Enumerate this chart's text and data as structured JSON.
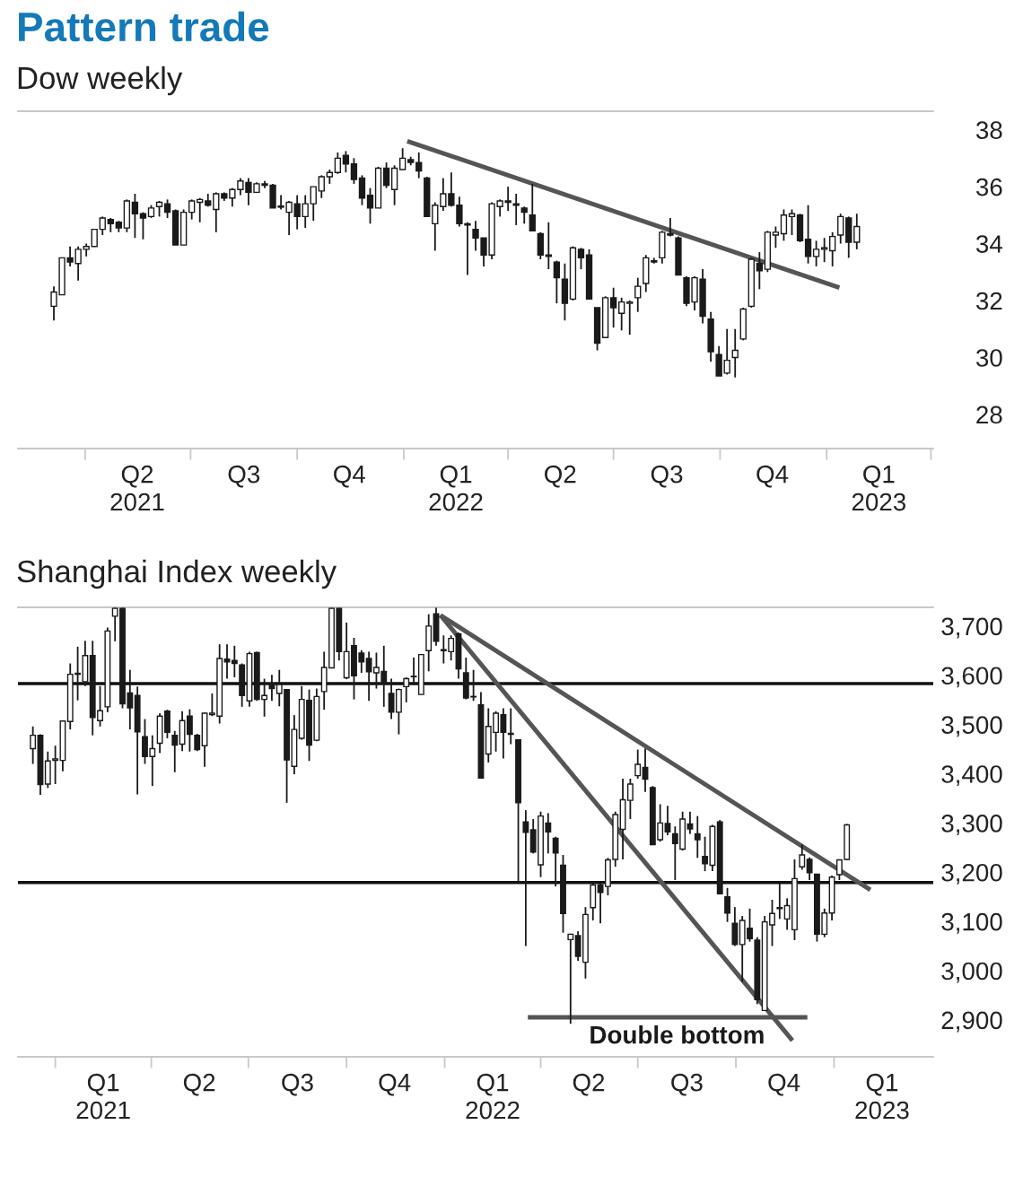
{
  "chart_data": [
    {
      "type": "candlestick",
      "title": "Pattern trade",
      "subtitle": "Dow weekly",
      "color": "#1a1a1a",
      "x": [
        "2021-03-05",
        "2021-03-12",
        "2021-03-19",
        "2021-03-26",
        "2021-04-02",
        "2021-04-09",
        "2021-04-16",
        "2021-04-23",
        "2021-04-30",
        "2021-05-07",
        "2021-05-14",
        "2021-05-21",
        "2021-05-28",
        "2021-06-04",
        "2021-06-11",
        "2021-06-18",
        "2021-06-25",
        "2021-07-02",
        "2021-07-09",
        "2021-07-16",
        "2021-07-23",
        "2021-07-30",
        "2021-08-06",
        "2021-08-13",
        "2021-08-20",
        "2021-08-27",
        "2021-09-03",
        "2021-09-10",
        "2021-09-17",
        "2021-09-24",
        "2021-10-01",
        "2021-10-08",
        "2021-10-15",
        "2021-10-22",
        "2021-10-29",
        "2021-11-05",
        "2021-11-12",
        "2021-11-19",
        "2021-11-26",
        "2021-12-03",
        "2021-12-10",
        "2021-12-17",
        "2021-12-24",
        "2021-12-31",
        "2022-01-07",
        "2022-01-14",
        "2022-01-21",
        "2022-01-28",
        "2022-02-04",
        "2022-02-11",
        "2022-02-18",
        "2022-02-25",
        "2022-03-04",
        "2022-03-11",
        "2022-03-18",
        "2022-03-25",
        "2022-04-01",
        "2022-04-08",
        "2022-04-15",
        "2022-04-22",
        "2022-04-29",
        "2022-05-06",
        "2022-05-13",
        "2022-05-20",
        "2022-05-27",
        "2022-06-03",
        "2022-06-10",
        "2022-06-17",
        "2022-06-24",
        "2022-07-01",
        "2022-07-08",
        "2022-07-15",
        "2022-07-22",
        "2022-07-29",
        "2022-08-05",
        "2022-08-12",
        "2022-08-19",
        "2022-08-26",
        "2022-09-02",
        "2022-09-09",
        "2022-09-16",
        "2022-09-23",
        "2022-09-30",
        "2022-10-07",
        "2022-10-14",
        "2022-10-21",
        "2022-10-28",
        "2022-11-04",
        "2022-11-11",
        "2022-11-18",
        "2022-11-25",
        "2022-12-02",
        "2022-12-09",
        "2022-12-16",
        "2022-12-23",
        "2022-12-30",
        "2023-01-06",
        "2023-01-13",
        "2023-01-20",
        "2023-01-27"
      ],
      "ohlc": [
        [
          31.8,
          32.5,
          31.3,
          32.3
        ],
        [
          32.2,
          33.5,
          32.2,
          33.5
        ],
        [
          33.5,
          33.9,
          33.2,
          33.35
        ],
        [
          33.3,
          33.9,
          32.7,
          33.8
        ],
        [
          33.8,
          34.0,
          33.55,
          33.9
        ],
        [
          33.9,
          34.5,
          33.9,
          34.5
        ],
        [
          34.5,
          34.95,
          34.3,
          34.9
        ],
        [
          34.85,
          34.9,
          34.4,
          34.7
        ],
        [
          34.75,
          34.8,
          34.4,
          34.55
        ],
        [
          34.55,
          35.55,
          34.4,
          35.5
        ],
        [
          35.45,
          35.75,
          34.2,
          35.05
        ],
        [
          35.05,
          35.1,
          34.15,
          34.9
        ],
        [
          34.95,
          35.35,
          34.9,
          35.25
        ],
        [
          35.3,
          35.5,
          34.95,
          35.45
        ],
        [
          35.4,
          35.55,
          34.9,
          35.1
        ],
        [
          35.15,
          35.2,
          33.95,
          33.95
        ],
        [
          33.95,
          35.2,
          33.95,
          35.1
        ],
        [
          35.1,
          35.55,
          34.85,
          35.5
        ],
        [
          35.45,
          35.6,
          34.75,
          35.55
        ],
        [
          35.5,
          35.75,
          35.3,
          35.35
        ],
        [
          35.2,
          35.8,
          34.4,
          35.75
        ],
        [
          35.75,
          35.8,
          35.5,
          35.6
        ],
        [
          35.6,
          35.95,
          35.3,
          35.9
        ],
        [
          35.9,
          36.3,
          35.7,
          36.2
        ],
        [
          36.15,
          36.3,
          35.35,
          35.8
        ],
        [
          35.8,
          36.15,
          35.8,
          36.1
        ],
        [
          36.1,
          36.2,
          35.95,
          36.05
        ],
        [
          36.05,
          36.1,
          35.25,
          35.25
        ],
        [
          35.32,
          35.7,
          35.2,
          35.28
        ],
        [
          35.1,
          35.5,
          34.3,
          35.45
        ],
        [
          35.4,
          35.7,
          34.5,
          34.95
        ],
        [
          34.95,
          35.7,
          34.55,
          35.4
        ],
        [
          35.4,
          36.0,
          34.8,
          36.0
        ],
        [
          35.85,
          36.4,
          35.6,
          36.35
        ],
        [
          36.35,
          36.6,
          36.1,
          36.5
        ],
        [
          36.5,
          37.2,
          36.45,
          37.0
        ],
        [
          37.1,
          37.25,
          36.5,
          36.8
        ],
        [
          36.8,
          37.0,
          36.1,
          36.25
        ],
        [
          36.3,
          36.4,
          35.35,
          35.6
        ],
        [
          35.7,
          35.95,
          34.7,
          35.25
        ],
        [
          35.25,
          36.7,
          35.25,
          36.65
        ],
        [
          36.65,
          36.85,
          35.95,
          36.05
        ],
        [
          35.9,
          36.75,
          35.35,
          36.65
        ],
        [
          36.6,
          37.35,
          36.6,
          37.0
        ],
        [
          36.95,
          37.05,
          36.75,
          36.85
        ],
        [
          36.85,
          37.2,
          36.3,
          36.55
        ],
        [
          36.3,
          36.35,
          34.95,
          34.95
        ],
        [
          34.7,
          35.45,
          33.75,
          35.35
        ],
        [
          35.3,
          36.3,
          35.15,
          35.75
        ],
        [
          35.75,
          36.5,
          35.3,
          35.35
        ],
        [
          35.35,
          35.65,
          34.6,
          34.7
        ],
        [
          34.7,
          34.75,
          32.9,
          34.65
        ],
        [
          34.5,
          34.8,
          33.75,
          34.2
        ],
        [
          34.2,
          34.2,
          33.2,
          33.6
        ],
        [
          33.6,
          35.45,
          33.45,
          35.4
        ],
        [
          35.3,
          35.55,
          34.95,
          35.5
        ],
        [
          35.5,
          36.0,
          35.15,
          35.45
        ],
        [
          35.4,
          35.75,
          34.65,
          35.35
        ],
        [
          35.25,
          35.3,
          34.7,
          35.1
        ],
        [
          35.0,
          36.1,
          34.45,
          34.45
        ],
        [
          34.35,
          34.4,
          33.45,
          33.6
        ],
        [
          33.6,
          34.75,
          33.1,
          33.55
        ],
        [
          33.35,
          33.4,
          31.9,
          32.8
        ],
        [
          32.75,
          33.3,
          31.3,
          31.9
        ],
        [
          32.05,
          33.9,
          32.0,
          33.85
        ],
        [
          33.8,
          33.85,
          33.1,
          33.5
        ],
        [
          33.6,
          33.8,
          32.05,
          32.05
        ],
        [
          31.75,
          31.75,
          30.25,
          30.5
        ],
        [
          30.7,
          32.15,
          30.7,
          32.1
        ],
        [
          32.1,
          32.45,
          31.05,
          31.75
        ],
        [
          31.55,
          32.1,
          30.95,
          31.95
        ],
        [
          31.9,
          32.0,
          30.8,
          31.95
        ],
        [
          32.1,
          32.8,
          31.6,
          32.5
        ],
        [
          32.6,
          33.6,
          32.3,
          33.5
        ],
        [
          33.4,
          33.5,
          33.3,
          33.35
        ],
        [
          33.5,
          34.45,
          33.3,
          34.4
        ],
        [
          34.35,
          34.9,
          34.25,
          34.3
        ],
        [
          34.2,
          34.25,
          32.9,
          32.9
        ],
        [
          32.8,
          32.85,
          31.8,
          31.9
        ],
        [
          31.95,
          32.85,
          31.65,
          32.8
        ],
        [
          32.75,
          33.1,
          31.2,
          31.45
        ],
        [
          31.35,
          31.6,
          29.85,
          30.2
        ],
        [
          30.1,
          30.4,
          29.35,
          29.35
        ],
        [
          29.45,
          31.0,
          29.4,
          29.9
        ],
        [
          30.0,
          31.0,
          29.3,
          30.25
        ],
        [
          30.65,
          31.75,
          30.6,
          31.7
        ],
        [
          31.8,
          33.5,
          31.75,
          33.45
        ],
        [
          33.3,
          33.7,
          32.4,
          33.05
        ],
        [
          33.1,
          34.45,
          33.0,
          34.4
        ],
        [
          34.3,
          34.6,
          33.85,
          34.4
        ],
        [
          34.35,
          35.2,
          34.1,
          35.0
        ],
        [
          34.95,
          35.2,
          34.3,
          35.05
        ],
        [
          35.0,
          35.05,
          34.05,
          34.1
        ],
        [
          34.15,
          35.35,
          33.3,
          33.55
        ],
        [
          33.55,
          34.1,
          33.2,
          33.8
        ],
        [
          33.8,
          34.2,
          33.35,
          33.85
        ],
        [
          33.75,
          34.4,
          33.2,
          34.25
        ],
        [
          34.3,
          35.05,
          34.0,
          34.95
        ],
        [
          34.9,
          34.95,
          33.5,
          34.05
        ],
        [
          34.05,
          35.05,
          33.8,
          34.6
        ]
      ],
      "series": [
        {
          "type": "line",
          "x": [
            "2022-01-04",
            "2023-01-12"
          ],
          "values": [
            37.6,
            32.45
          ],
          "color": "#555555"
        }
      ],
      "xlim": [
        "2021-02-02",
        "2023-04-03"
      ],
      "ylim": [
        26.8,
        38.65
      ],
      "xticks": [
        {
          "value": "2021-04-01",
          "label": null
        },
        {
          "value": "2021-05-16",
          "label": "Q2\n2021"
        },
        {
          "value": "2021-07-01",
          "label": null
        },
        {
          "value": "2021-08-16",
          "label": "Q3"
        },
        {
          "value": "2021-10-01",
          "label": null
        },
        {
          "value": "2021-11-15",
          "label": "Q4"
        },
        {
          "value": "2022-01-01",
          "label": null
        },
        {
          "value": "2022-02-15",
          "label": "Q1\n2022"
        },
        {
          "value": "2022-04-01",
          "label": null
        },
        {
          "value": "2022-05-16",
          "label": "Q2"
        },
        {
          "value": "2022-07-01",
          "label": null
        },
        {
          "value": "2022-08-16",
          "label": "Q3"
        },
        {
          "value": "2022-10-01",
          "label": null
        },
        {
          "value": "2022-11-15",
          "label": "Q4"
        },
        {
          "value": "2023-01-01",
          "label": null
        },
        {
          "value": "2023-02-15",
          "label": "Q1\n2023"
        },
        {
          "value": "2023-04-01",
          "label": null
        }
      ],
      "yticks": [
        28,
        30,
        32,
        34,
        36,
        38
      ]
    },
    {
      "type": "candlestick",
      "title": "Shanghai Index weekly",
      "color": "#1a1a1a",
      "x": [
        "2020-12-11",
        "2020-12-18",
        "2020-12-25",
        "2021-01-01",
        "2021-01-08",
        "2021-01-15",
        "2021-01-22",
        "2021-01-29",
        "2021-02-05",
        "2021-02-12",
        "2021-02-19",
        "2021-02-26",
        "2021-03-05",
        "2021-03-12",
        "2021-03-19",
        "2021-03-26",
        "2021-04-02",
        "2021-04-09",
        "2021-04-16",
        "2021-04-23",
        "2021-04-30",
        "2021-05-07",
        "2021-05-14",
        "2021-05-21",
        "2021-05-28",
        "2021-06-04",
        "2021-06-11",
        "2021-06-18",
        "2021-06-25",
        "2021-07-02",
        "2021-07-09",
        "2021-07-16",
        "2021-07-23",
        "2021-07-30",
        "2021-08-06",
        "2021-08-13",
        "2021-08-20",
        "2021-08-27",
        "2021-09-03",
        "2021-09-10",
        "2021-09-17",
        "2021-09-24",
        "2021-10-01",
        "2021-10-08",
        "2021-10-15",
        "2021-10-22",
        "2021-10-29",
        "2021-11-05",
        "2021-11-12",
        "2021-11-19",
        "2021-11-26",
        "2021-12-03",
        "2021-12-10",
        "2021-12-17",
        "2021-12-24",
        "2021-12-31",
        "2022-01-07",
        "2022-01-14",
        "2022-01-21",
        "2022-01-28",
        "2022-02-04",
        "2022-02-11",
        "2022-02-18",
        "2022-02-25",
        "2022-03-04",
        "2022-03-11",
        "2022-03-18",
        "2022-03-25",
        "2022-04-01",
        "2022-04-08",
        "2022-04-15",
        "2022-04-22",
        "2022-04-29",
        "2022-05-06",
        "2022-05-13",
        "2022-05-20",
        "2022-05-27",
        "2022-06-03",
        "2022-06-10",
        "2022-06-17",
        "2022-06-24",
        "2022-07-01",
        "2022-07-08",
        "2022-07-15",
        "2022-07-22",
        "2022-07-29",
        "2022-08-05",
        "2022-08-12",
        "2022-08-19",
        "2022-08-26",
        "2022-09-02",
        "2022-09-09",
        "2022-09-16",
        "2022-09-23",
        "2022-09-30",
        "2022-10-07",
        "2022-10-14",
        "2022-10-21",
        "2022-10-28",
        "2022-11-04",
        "2022-11-11",
        "2022-11-18",
        "2022-11-25",
        "2022-12-02",
        "2022-12-09",
        "2022-12-16",
        "2022-12-23",
        "2022-12-30",
        "2023-01-06",
        "2023-01-13"
      ],
      "ohlc": [
        [
          3451,
          3496,
          3420,
          3478
        ],
        [
          3478,
          3480,
          3357,
          3378
        ],
        [
          3379,
          3445,
          3371,
          3426
        ],
        [
          3427,
          3457,
          3379,
          3430
        ],
        [
          3427,
          3508,
          3405,
          3507
        ],
        [
          3506,
          3624,
          3490,
          3602
        ],
        [
          3602,
          3658,
          3549,
          3604
        ],
        [
          3587,
          3670,
          3578,
          3640
        ],
        [
          3640,
          3670,
          3478,
          3514
        ],
        [
          3508,
          3578,
          3496,
          3528
        ],
        [
          3536,
          3697,
          3525,
          3690
        ],
        [
          3720,
          3737,
          3669,
          3736
        ],
        [
          3736,
          3737,
          3533,
          3542
        ],
        [
          3564,
          3611,
          3490,
          3534
        ],
        [
          3559,
          3577,
          3358,
          3485
        ],
        [
          3475,
          3511,
          3420,
          3435
        ],
        [
          3435,
          3478,
          3375,
          3451
        ],
        [
          3462,
          3523,
          3442,
          3517
        ],
        [
          3527,
          3530,
          3472,
          3484
        ],
        [
          3478,
          3487,
          3403,
          3458
        ],
        [
          3460,
          3527,
          3446,
          3508
        ],
        [
          3517,
          3531,
          3445,
          3480
        ],
        [
          3478,
          3481,
          3446,
          3449
        ],
        [
          3457,
          3524,
          3414,
          3523
        ],
        [
          3520,
          3563,
          3517,
          3523
        ],
        [
          3517,
          3663,
          3502,
          3634
        ],
        [
          3633,
          3663,
          3593,
          3627
        ],
        [
          3630,
          3660,
          3596,
          3624
        ],
        [
          3621,
          3624,
          3536,
          3559
        ],
        [
          3548,
          3648,
          3536,
          3644
        ],
        [
          3646,
          3648,
          3548,
          3551
        ],
        [
          3551,
          3593,
          3516,
          3559
        ],
        [
          3583,
          3601,
          3548,
          3573
        ],
        [
          3563,
          3611,
          3537,
          3581
        ],
        [
          3571,
          3571,
          3341,
          3428
        ],
        [
          3415,
          3519,
          3399,
          3490
        ],
        [
          3472,
          3578,
          3469,
          3551
        ],
        [
          3549,
          3571,
          3426,
          3458
        ],
        [
          3468,
          3573,
          3466,
          3557
        ],
        [
          3567,
          3648,
          3530,
          3616
        ],
        [
          3615,
          3737,
          3615,
          3736
        ],
        [
          3736,
          3737,
          3630,
          3648
        ],
        [
          3595,
          3707,
          3592,
          3648
        ],
        [
          3660,
          3676,
          3551,
          3599
        ],
        [
          3645,
          3651,
          3605,
          3627
        ],
        [
          3634,
          3648,
          3548,
          3607
        ],
        [
          3605,
          3646,
          3573,
          3616
        ],
        [
          3608,
          3660,
          3536,
          3583
        ],
        [
          3563,
          3593,
          3511,
          3525
        ],
        [
          3525,
          3573,
          3480,
          3571
        ],
        [
          3577,
          3596,
          3545,
          3593
        ],
        [
          3597,
          3636,
          3581,
          3598
        ],
        [
          3561,
          3642,
          3560,
          3642
        ],
        [
          3650,
          3724,
          3608,
          3700
        ],
        [
          3725,
          3737,
          3660,
          3669
        ],
        [
          3652,
          3681,
          3624,
          3650
        ],
        [
          3648,
          3681,
          3630,
          3675
        ],
        [
          3684,
          3687,
          3593,
          3613
        ],
        [
          3605,
          3636,
          3551,
          3554
        ],
        [
          3557,
          3611,
          3548,
          3556
        ],
        [
          3540,
          3566,
          3391,
          3391
        ],
        [
          3440,
          3533,
          3423,
          3496
        ],
        [
          3484,
          3527,
          3445,
          3523
        ],
        [
          3520,
          3533,
          3431,
          3484
        ],
        [
          3482,
          3533,
          3460,
          3480
        ],
        [
          3469,
          3469,
          3181,
          3341
        ],
        [
          3302,
          3326,
          3050,
          3281
        ],
        [
          3286,
          3308,
          3238,
          3241
        ],
        [
          3215,
          3323,
          3190,
          3314
        ],
        [
          3300,
          3320,
          3238,
          3282
        ],
        [
          3269,
          3272,
          3171,
          3239
        ],
        [
          3214,
          3235,
          3077,
          3116
        ],
        [
          3063,
          3075,
          2892,
          3074
        ],
        [
          3071,
          3080,
          3020,
          3029
        ],
        [
          3017,
          3129,
          2984,
          3114
        ],
        [
          3128,
          3177,
          3102,
          3174
        ],
        [
          3174,
          3177,
          3096,
          3159
        ],
        [
          3171,
          3229,
          3153,
          3225
        ],
        [
          3226,
          3323,
          3211,
          3317
        ],
        [
          3287,
          3390,
          3226,
          3347
        ],
        [
          3346,
          3390,
          3308,
          3379
        ],
        [
          3396,
          3449,
          3390,
          3419
        ],
        [
          3413,
          3451,
          3363,
          3389
        ],
        [
          3372,
          3375,
          3256,
          3256
        ],
        [
          3266,
          3338,
          3262,
          3300
        ],
        [
          3299,
          3335,
          3275,
          3282
        ],
        [
          3278,
          3293,
          3184,
          3258
        ],
        [
          3247,
          3323,
          3244,
          3308
        ],
        [
          3298,
          3323,
          3278,
          3288
        ],
        [
          3278,
          3314,
          3229,
          3266
        ],
        [
          3232,
          3272,
          3202,
          3217
        ],
        [
          3214,
          3296,
          3202,
          3293
        ],
        [
          3302,
          3306,
          3156,
          3156
        ],
        [
          3150,
          3168,
          3099,
          3117
        ],
        [
          3096,
          3129,
          3050,
          3053
        ],
        [
          3053,
          3111,
          2977,
          3102
        ],
        [
          3086,
          3126,
          3059,
          3065
        ],
        [
          3062,
          3068,
          2932,
          2941
        ],
        [
          2919,
          3111,
          2919,
          3099
        ],
        [
          3093,
          3144,
          3050,
          3116
        ],
        [
          3128,
          3177,
          3105,
          3126
        ],
        [
          3105,
          3147,
          3083,
          3132
        ],
        [
          3083,
          3226,
          3062,
          3187
        ],
        [
          3211,
          3256,
          3205,
          3235
        ],
        [
          3226,
          3230,
          3184,
          3199
        ],
        [
          3196,
          3196,
          3059,
          3074
        ],
        [
          3074,
          3126,
          3068,
          3117
        ],
        [
          3117,
          3193,
          3102,
          3190
        ],
        [
          3195,
          3226,
          3184,
          3225
        ],
        [
          3226,
          3298,
          3225,
          3296
        ]
      ],
      "series": [
        {
          "type": "line",
          "x": [
            "2021-12-28",
            "2023-02-04"
          ],
          "values": [
            3722,
            3164
          ],
          "color": "#555555"
        },
        {
          "type": "line",
          "x": [
            "2021-12-28",
            "2022-11-23"
          ],
          "values": [
            3722,
            2858
          ],
          "color": "#555555"
        },
        {
          "type": "line",
          "x": [
            "2022-03-20",
            "2022-12-07"
          ],
          "values": [
            2905,
            2905
          ],
          "color": "#555555"
        }
      ],
      "ref_lines": [
        {
          "axis": "y",
          "value": 3583,
          "color": "#111111"
        },
        {
          "axis": "y",
          "value": 3179,
          "color": "#111111"
        }
      ],
      "annotations": [
        "Double bottom"
      ],
      "xlim": [
        "2020-11-27",
        "2023-04-04"
      ],
      "ylim": [
        2825,
        3738
      ],
      "xticks": [
        {
          "value": "2021-01-01",
          "label": null
        },
        {
          "value": "2021-02-15",
          "label": "Q1\n2021"
        },
        {
          "value": "2021-04-01",
          "label": null
        },
        {
          "value": "2021-05-16",
          "label": "Q2"
        },
        {
          "value": "2021-07-01",
          "label": null
        },
        {
          "value": "2021-08-16",
          "label": "Q3"
        },
        {
          "value": "2021-10-01",
          "label": null
        },
        {
          "value": "2021-11-15",
          "label": "Q4"
        },
        {
          "value": "2022-01-01",
          "label": null
        },
        {
          "value": "2022-02-15",
          "label": "Q1\n2022"
        },
        {
          "value": "2022-04-01",
          "label": null
        },
        {
          "value": "2022-05-16",
          "label": "Q2"
        },
        {
          "value": "2022-07-01",
          "label": null
        },
        {
          "value": "2022-08-16",
          "label": "Q3"
        },
        {
          "value": "2022-10-01",
          "label": null
        },
        {
          "value": "2022-11-15",
          "label": "Q4"
        },
        {
          "value": "2023-01-01",
          "label": null
        },
        {
          "value": "2023-02-15",
          "label": "Q1\n2023"
        }
      ],
      "yticks": [
        {
          "value": 2900,
          "label": "2,900"
        },
        {
          "value": 3000,
          "label": "3,000"
        },
        {
          "value": 3100,
          "label": "3,100"
        },
        {
          "value": 3200,
          "label": "3,200"
        },
        {
          "value": 3300,
          "label": "3,300"
        },
        {
          "value": 3400,
          "label": "3,400"
        },
        {
          "value": 3500,
          "label": "3,500"
        },
        {
          "value": 3600,
          "label": "3,600"
        },
        {
          "value": 3700,
          "label": "3,700"
        }
      ]
    }
  ]
}
